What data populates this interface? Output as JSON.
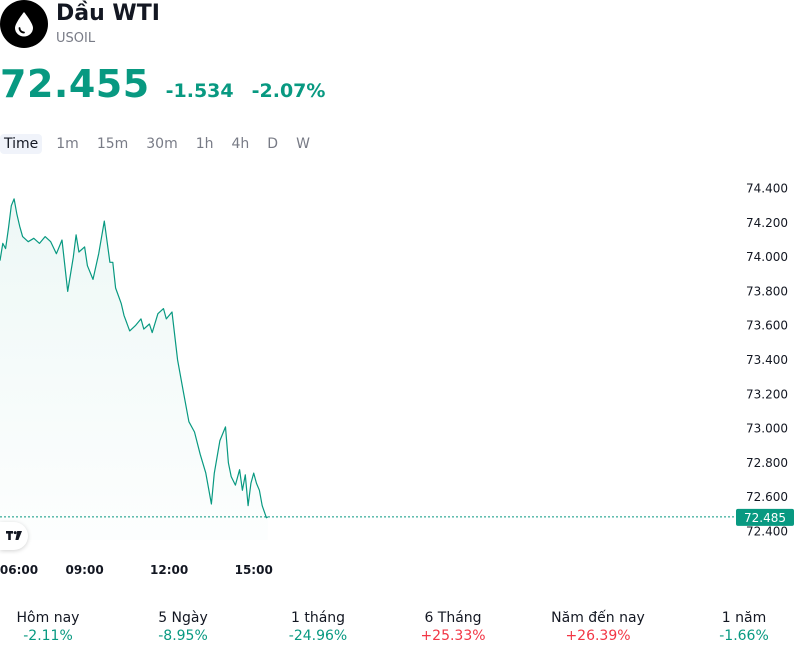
{
  "header": {
    "logo_icon": "oil-drop-icon",
    "title": "Dầu WTI",
    "symbol": "USOIL"
  },
  "quote": {
    "price": "72.455",
    "change": "-1.534",
    "change_pct": "-2.07%",
    "color": "#089981"
  },
  "timeframes": [
    "Time",
    "1m",
    "15m",
    "30m",
    "1h",
    "4h",
    "D",
    "W"
  ],
  "active_timeframe": "Time",
  "chart_data": {
    "type": "area",
    "ylim": [
      72.35,
      74.45
    ],
    "y_ticks": [
      "74.400",
      "74.200",
      "74.000",
      "73.800",
      "73.600",
      "73.400",
      "73.200",
      "73.000",
      "72.800",
      "72.600",
      "72.400"
    ],
    "y_tick_values": [
      74.4,
      74.2,
      74.0,
      73.8,
      73.6,
      73.4,
      73.2,
      73.0,
      72.8,
      72.6,
      72.4
    ],
    "x_ticks": [
      "06:00",
      "09:00",
      "12:00",
      "15:00"
    ],
    "x_tick_hours": [
      6,
      9,
      12,
      15
    ],
    "xlim_hours": [
      6,
      24.8
    ],
    "last_price_label": "72.485",
    "last_price": 72.485,
    "line_color": "#089981",
    "series": [
      {
        "hours": [
          6.0,
          6.1,
          6.2,
          6.3,
          6.4,
          6.5,
          6.6,
          6.7,
          6.8,
          7.0,
          7.2,
          7.4,
          7.6,
          7.8,
          8.0,
          8.2,
          8.4,
          8.6,
          8.7,
          8.8,
          9.0,
          9.1,
          9.3,
          9.5,
          9.7,
          9.9,
          10.0,
          10.1,
          10.3,
          10.4,
          10.6,
          10.8,
          11.0,
          11.1,
          11.3,
          11.4,
          11.6,
          11.8,
          11.9,
          12.1,
          12.3,
          12.5,
          12.7,
          12.9,
          13.1,
          13.3,
          13.5,
          13.6,
          13.8,
          14.0,
          14.1,
          14.2,
          14.35,
          14.5,
          14.6,
          14.7,
          14.8,
          14.9,
          15.0,
          15.1,
          15.2,
          15.3,
          15.45,
          15.5
        ],
        "values": [
          73.98,
          74.08,
          74.05,
          74.17,
          74.3,
          74.34,
          74.25,
          74.18,
          74.12,
          74.09,
          74.11,
          74.08,
          74.12,
          74.09,
          74.02,
          74.1,
          73.8,
          74.0,
          74.13,
          74.03,
          74.06,
          73.95,
          73.87,
          74.02,
          74.21,
          73.97,
          73.97,
          73.82,
          73.73,
          73.66,
          73.57,
          73.6,
          73.64,
          73.58,
          73.61,
          73.56,
          73.67,
          73.7,
          73.64,
          73.68,
          73.4,
          73.22,
          73.04,
          72.98,
          72.85,
          72.74,
          72.56,
          72.74,
          72.93,
          73.01,
          72.8,
          72.72,
          72.67,
          72.76,
          72.64,
          72.73,
          72.55,
          72.68,
          72.74,
          72.68,
          72.64,
          72.55,
          72.48,
          72.485
        ]
      }
    ]
  },
  "performance": [
    {
      "label": "Hôm nay",
      "value": "-2.11%",
      "color": "#089981"
    },
    {
      "label": "5 Ngày",
      "value": "-8.95%",
      "color": "#089981"
    },
    {
      "label": "1 tháng",
      "value": "-24.96%",
      "color": "#089981"
    },
    {
      "label": "6 Tháng",
      "value": "+25.33%",
      "color": "#f23645"
    },
    {
      "label": "Năm đến nay",
      "value": "+26.39%",
      "color": "#f23645"
    },
    {
      "label": "1 năm",
      "value": "-1.66%",
      "color": "#089981"
    }
  ],
  "watermark_icon": "tradingview-logo-icon"
}
